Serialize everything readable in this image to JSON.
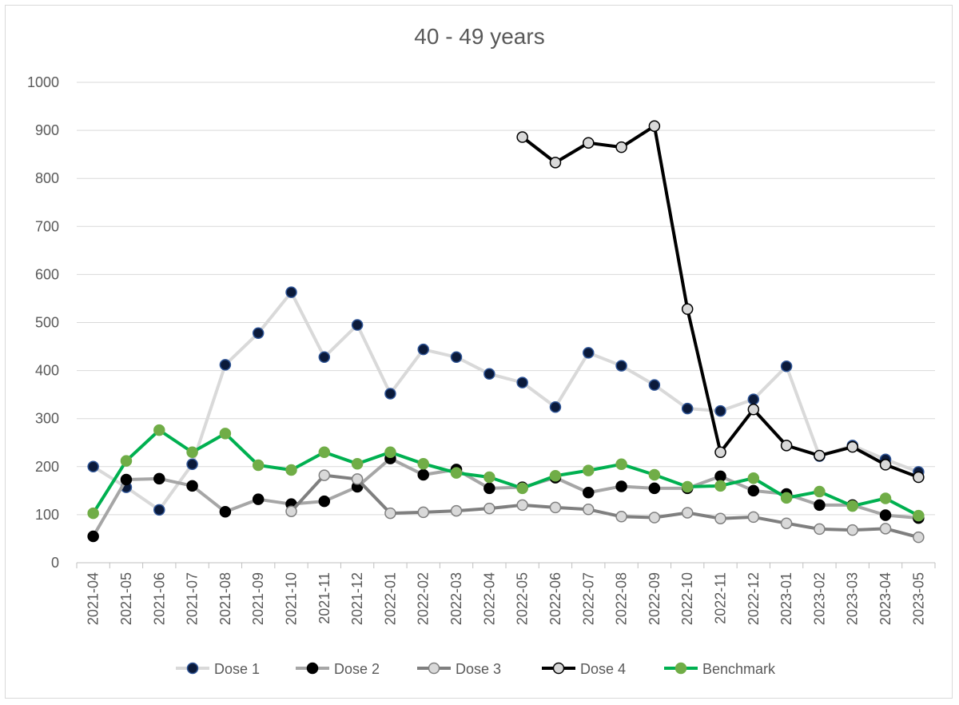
{
  "chart_data": {
    "type": "line",
    "title": "40 - 49 years",
    "xlabel": "",
    "ylabel": "",
    "ylim": [
      0,
      1000
    ],
    "ytick_step": 100,
    "grid": true,
    "legend_position": "bottom",
    "categories": [
      "2021-04",
      "2021-05",
      "2021-06",
      "2021-07",
      "2021-08",
      "2021-09",
      "2021-10",
      "2021-11",
      "2021-12",
      "2022-01",
      "2022-02",
      "2022-03",
      "2022-04",
      "2022-05",
      "2022-06",
      "2022-07",
      "2022-08",
      "2022-09",
      "2022-10",
      "2022-11",
      "2022-12",
      "2023-01",
      "2023-02",
      "2023-03",
      "2023-04",
      "2023-05"
    ],
    "series": [
      {
        "name": "Dose 1",
        "line_color": "#d9d9d9",
        "marker_fill": "#0b1a3a",
        "marker_stroke": "#2f5597",
        "values": [
          200,
          157,
          110,
          205,
          412,
          478,
          563,
          428,
          495,
          352,
          444,
          428,
          393,
          375,
          324,
          437,
          410,
          370,
          321,
          316,
          340,
          409,
          222,
          244,
          215,
          189
        ]
      },
      {
        "name": "Dose 2",
        "line_color": "#a6a6a6",
        "marker_fill": "#000000",
        "marker_stroke": "#000000",
        "values": [
          55,
          173,
          175,
          160,
          106,
          132,
          122,
          128,
          158,
          217,
          183,
          194,
          155,
          157,
          177,
          146,
          159,
          155,
          155,
          180,
          150,
          143,
          120,
          120,
          99,
          93
        ]
      },
      {
        "name": "Dose 3",
        "line_color": "#7f7f7f",
        "marker_fill": "#d9d9d9",
        "marker_stroke": "#7f7f7f",
        "values": [
          null,
          null,
          null,
          null,
          null,
          null,
          107,
          182,
          174,
          103,
          105,
          108,
          113,
          120,
          115,
          111,
          96,
          94,
          104,
          92,
          95,
          82,
          70,
          68,
          71,
          53
        ]
      },
      {
        "name": "Dose 4",
        "line_color": "#000000",
        "marker_fill": "#d9d9d9",
        "marker_stroke": "#000000",
        "values": [
          null,
          null,
          null,
          null,
          null,
          null,
          null,
          null,
          null,
          null,
          null,
          null,
          null,
          886,
          833,
          874,
          865,
          909,
          528,
          230,
          319,
          244,
          223,
          241,
          204,
          178
        ]
      },
      {
        "name": "Benchmark",
        "line_color": "#00b050",
        "marker_fill": "#70ad47",
        "marker_stroke": "#70ad47",
        "values": [
          103,
          212,
          276,
          230,
          269,
          203,
          193,
          230,
          206,
          230,
          206,
          187,
          178,
          155,
          181,
          192,
          205,
          183,
          158,
          160,
          176,
          135,
          148,
          118,
          134,
          98
        ]
      }
    ]
  }
}
